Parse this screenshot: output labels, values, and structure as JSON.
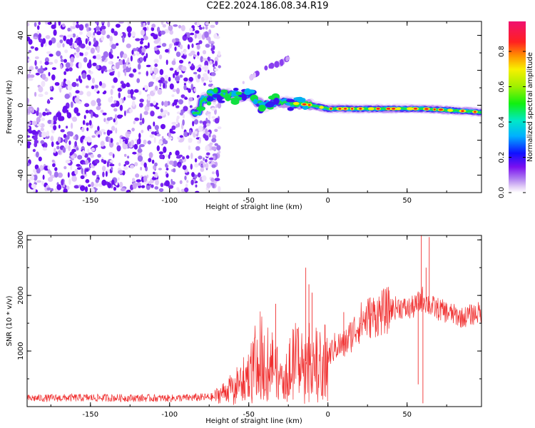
{
  "title": "C2E2.2024.186.08.34.R19",
  "chart_data": [
    {
      "type": "heatmap",
      "xlabel": "Height of straight line (km)",
      "ylabel": "Frequency (Hz)",
      "xlim": [
        -190,
        97
      ],
      "ylim": [
        -50,
        48
      ],
      "xticks": [
        -150,
        -100,
        -50,
        0,
        50
      ],
      "yticks": [
        -40,
        -20,
        0,
        20,
        40
      ],
      "colorbar": {
        "label": "Normalized spectral amplitude",
        "ticks": [
          0.0,
          0.2,
          0.4,
          0.6,
          0.8
        ],
        "range": [
          0.0,
          0.97
        ]
      },
      "noise_region_x": [
        -190,
        -72
      ],
      "ridge": [
        {
          "x": -80,
          "y": 3
        },
        {
          "x": -70,
          "y": 6
        },
        {
          "x": -60,
          "y": 6
        },
        {
          "x": -55,
          "y": 5
        },
        {
          "x": -50,
          "y": 7
        },
        {
          "x": -45,
          "y": 2
        },
        {
          "x": -40,
          "y": 0
        },
        {
          "x": -35,
          "y": 1
        },
        {
          "x": -30,
          "y": 2
        },
        {
          "x": -20,
          "y": 1
        },
        {
          "x": -10,
          "y": 0
        },
        {
          "x": 0,
          "y": -2
        },
        {
          "x": 20,
          "y": -2
        },
        {
          "x": 40,
          "y": -2
        },
        {
          "x": 60,
          "y": -2
        },
        {
          "x": 80,
          "y": -3
        },
        {
          "x": 97,
          "y": -4
        }
      ],
      "upper_branch": [
        {
          "x": -55,
          "y": 12
        },
        {
          "x": -45,
          "y": 18
        },
        {
          "x": -38,
          "y": 22
        },
        {
          "x": -30,
          "y": 24
        },
        {
          "x": -25,
          "y": 27
        }
      ]
    },
    {
      "type": "line",
      "xlabel": "Height of straight line (km)",
      "ylabel": "SNR (10 * v/v)",
      "xlim": [
        -190,
        97
      ],
      "ylim": [
        0,
        3080
      ],
      "xticks": [
        -150,
        -100,
        -50,
        0,
        50
      ],
      "yticks": [
        1000,
        2000,
        3000
      ],
      "series": [
        {
          "color": "#f03030",
          "x": [
            -190,
            -150,
            -100,
            -72,
            -60,
            -50,
            -45,
            -40,
            -35,
            -30,
            -28,
            -25,
            -20,
            -15,
            -10,
            -5,
            0,
            5,
            10,
            15,
            20,
            25,
            30,
            40,
            45,
            50,
            55,
            60,
            65,
            70,
            75,
            80,
            85,
            90,
            97
          ],
          "values": [
            150,
            160,
            150,
            170,
            350,
            600,
            900,
            1100,
            800,
            500,
            350,
            700,
            900,
            800,
            900,
            800,
            900,
            1100,
            1100,
            1300,
            1500,
            1600,
            1650,
            1750,
            1800,
            1750,
            1800,
            1950,
            1800,
            1750,
            1700,
            1650,
            1600,
            1650,
            1700
          ],
          "peaks": [
            {
              "x": -33,
              "y": 1850
            },
            {
              "x": -14,
              "y": 2500
            },
            {
              "x": -12,
              "y": 2200
            },
            {
              "x": -10,
              "y": 2050
            },
            {
              "x": 10,
              "y": 1700
            },
            {
              "x": 59,
              "y": 3100
            },
            {
              "x": 62,
              "y": 2500
            },
            {
              "x": 64,
              "y": 3050
            },
            {
              "x": 60,
              "y": 60
            },
            {
              "x": 57,
              "y": 400
            }
          ]
        }
      ]
    }
  ]
}
